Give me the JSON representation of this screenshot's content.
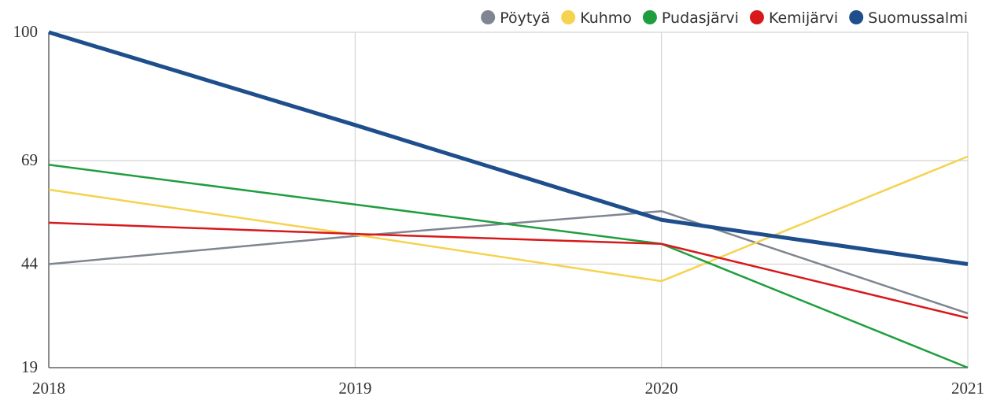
{
  "chart_data": {
    "type": "line",
    "x": [
      "2018",
      "2019",
      "2020",
      "2021"
    ],
    "ylim": [
      19,
      100
    ],
    "yticks": [
      19,
      44,
      69,
      100
    ],
    "grid": true,
    "legend": "top-right",
    "series": [
      {
        "name": "Pöytyä",
        "color": "#7f8591",
        "values": [
          44,
          50.8,
          56.8,
          32.1
        ]
      },
      {
        "name": "Kuhmo",
        "color": "#f5d34f",
        "values": [
          62,
          51.1,
          39.9,
          70
        ]
      },
      {
        "name": "Pudasjärvi",
        "color": "#1f9e3f",
        "values": [
          68,
          58.4,
          48.9,
          19
        ]
      },
      {
        "name": "Kemijärvi",
        "color": "#d7191c",
        "values": [
          54,
          51.3,
          48.9,
          31
        ]
      },
      {
        "name": "Suomussalmi",
        "color": "#1f4e8c",
        "values": [
          100,
          77.6,
          54.7,
          44
        ]
      }
    ]
  }
}
